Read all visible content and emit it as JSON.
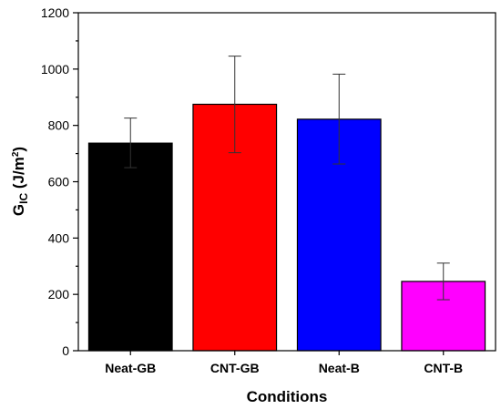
{
  "chart_data": {
    "type": "bar",
    "categories": [
      "Neat-GB",
      "CNT-GB",
      "Neat-B",
      "CNT-B"
    ],
    "values": [
      737,
      875,
      822,
      246
    ],
    "errors": [
      [
        650,
        826
      ],
      [
        703,
        1046
      ],
      [
        663,
        982
      ],
      [
        181,
        311
      ]
    ],
    "colors": [
      "#000000",
      "#ff0000",
      "#0000ff",
      "#ff00ff"
    ],
    "xlabel": "Conditions",
    "ylabel": {
      "main": "G",
      "subscript": "IC",
      "unit_prefix": " (J/m",
      "unit_sup": "2",
      "unit_suffix": ")"
    },
    "ylim": [
      0,
      1200
    ],
    "yticks": [
      "0",
      "200",
      "400",
      "600",
      "800",
      "1000",
      "1200"
    ],
    "grid": false,
    "legend": "none"
  }
}
